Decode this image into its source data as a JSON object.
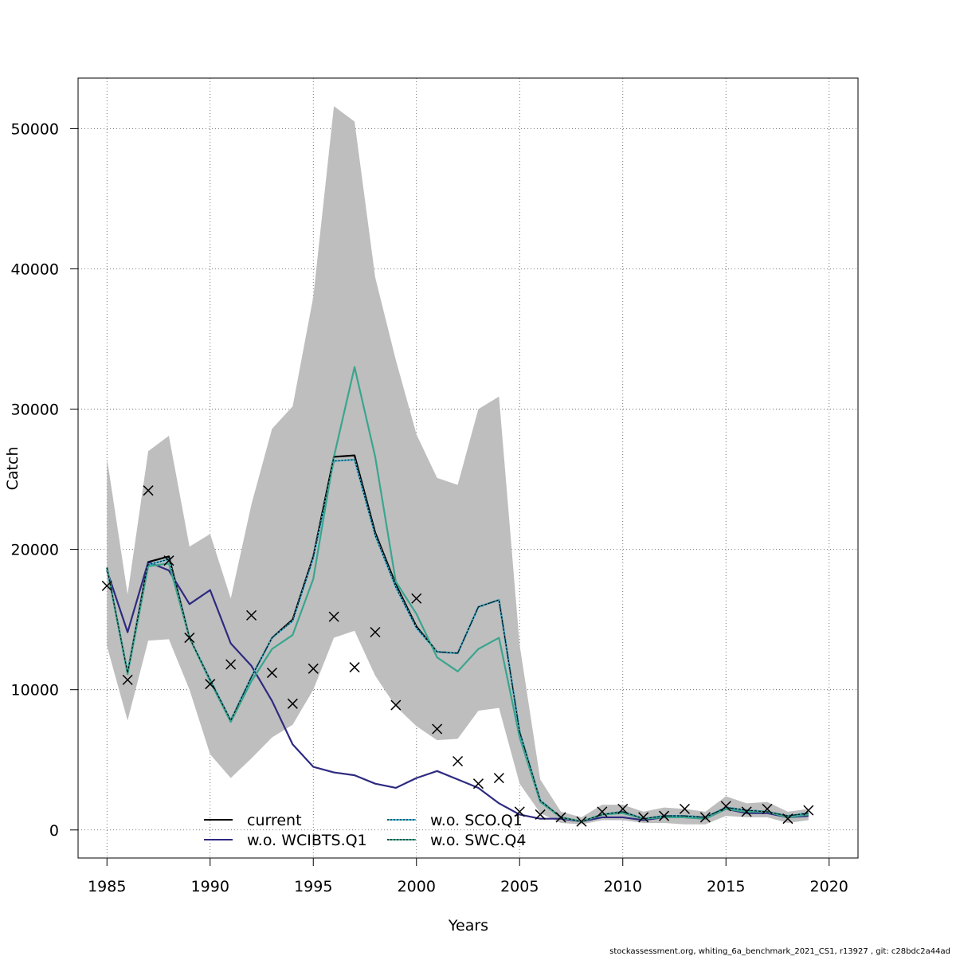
{
  "chart_data": {
    "type": "line",
    "xlabel": "Years",
    "ylabel": "Catch",
    "xlim": [
      1983.6,
      2021.4
    ],
    "ylim": [
      -2000,
      53600
    ],
    "x_ticks": [
      1985,
      1990,
      1995,
      2000,
      2005,
      2010,
      2015,
      2020
    ],
    "y_ticks": [
      0,
      10000,
      20000,
      30000,
      40000,
      50000
    ],
    "grid": true,
    "legend_position": "bottom-center",
    "x": [
      1985,
      1986,
      1987,
      1988,
      1989,
      1990,
      1991,
      1992,
      1993,
      1994,
      1995,
      1996,
      1997,
      1998,
      1999,
      2000,
      2001,
      2002,
      2003,
      2004,
      2005,
      2006,
      2007,
      2008,
      2009,
      2010,
      2011,
      2012,
      2013,
      2014,
      2015,
      2016,
      2017,
      2018,
      2019
    ],
    "band": {
      "color": "#bebebe",
      "upper": [
        26500,
        16800,
        27000,
        28100,
        20200,
        21100,
        16500,
        23200,
        28600,
        30200,
        38000,
        51600,
        50500,
        39400,
        33500,
        28200,
        25100,
        24600,
        30000,
        30900,
        13200,
        3600,
        1300,
        900,
        1800,
        1800,
        1300,
        1600,
        1500,
        1300,
        2400,
        1900,
        2000,
        1300,
        1500
      ],
      "lower": [
        13100,
        7800,
        13500,
        13600,
        10000,
        5400,
        3700,
        5100,
        6600,
        7500,
        10000,
        13700,
        14200,
        11000,
        8800,
        7400,
        6400,
        6500,
        8500,
        8700,
        3300,
        1200,
        500,
        400,
        700,
        700,
        500,
        500,
        400,
        400,
        1000,
        900,
        900,
        500,
        700
      ]
    },
    "series": [
      {
        "name": "current",
        "color": "#000000",
        "dash": "solid",
        "values": [
          18700,
          11200,
          19100,
          19500,
          13700,
          10700,
          7800,
          10900,
          13700,
          15000,
          19500,
          26600,
          26700,
          21200,
          17500,
          14500,
          12700,
          12600,
          15900,
          16400,
          7000,
          2100,
          900,
          600,
          1100,
          1300,
          800,
          1000,
          1000,
          900,
          1600,
          1400,
          1300,
          1000,
          1200
        ]
      },
      {
        "name": "w.o. WCIBTS.Q1",
        "color": "#2e2a80",
        "dash": "solid",
        "values": [
          18500,
          14100,
          19100,
          18500,
          16100,
          17100,
          13300,
          11700,
          9200,
          6100,
          4500,
          4100,
          3900,
          3300,
          3000,
          3700,
          4200,
          3600,
          3000,
          1900,
          1100,
          800,
          800,
          600,
          900,
          900,
          700,
          900,
          900,
          800,
          1500,
          1200,
          1200,
          900,
          1000
        ]
      },
      {
        "name": "w.o. SCO.Q1",
        "color": "#3fb7d8",
        "dash": "dotted",
        "values": [
          18700,
          11200,
          18900,
          19300,
          13700,
          10700,
          7800,
          10900,
          13700,
          14900,
          19400,
          26300,
          26400,
          21000,
          17300,
          14400,
          12700,
          12600,
          15900,
          16400,
          7000,
          2100,
          900,
          600,
          1100,
          1300,
          800,
          1000,
          1000,
          900,
          1600,
          1400,
          1300,
          1000,
          1200
        ]
      },
      {
        "name": "w.o. SWC.Q4",
        "color": "#3aa58e",
        "dash": "solid",
        "values": [
          18700,
          11100,
          18800,
          19000,
          13700,
          10600,
          7700,
          10600,
          12900,
          13900,
          17900,
          26600,
          33000,
          26600,
          17700,
          15400,
          12300,
          11300,
          12900,
          13700,
          6600,
          2000,
          900,
          600,
          1100,
          1200,
          800,
          900,
          900,
          800,
          1500,
          1300,
          1300,
          900,
          1100
        ]
      }
    ],
    "observed": {
      "marker": "x",
      "color": "#000000",
      "x": [
        1985,
        1986,
        1987,
        1988,
        1989,
        1990,
        1991,
        1992,
        1993,
        1994,
        1995,
        1996,
        1997,
        1998,
        1999,
        2000,
        2001,
        2002,
        2003,
        2004,
        2005,
        2006,
        2007,
        2008,
        2009,
        2010,
        2011,
        2012,
        2013,
        2014,
        2015,
        2016,
        2017,
        2018,
        2019
      ],
      "values": [
        17400,
        10700,
        24200,
        19200,
        13700,
        10400,
        11800,
        15300,
        11200,
        9000,
        11500,
        15200,
        11600,
        14100,
        8900,
        16500,
        7200,
        4900,
        3300,
        3700,
        1300,
        1100,
        900,
        600,
        1300,
        1500,
        900,
        1000,
        1500,
        900,
        1700,
        1300,
        1500,
        800,
        1400
      ]
    },
    "footer": "stockassessment.org, whiting_6a_benchmark_2021_CS1, r13927 , git: c28bdc2a44ad"
  }
}
